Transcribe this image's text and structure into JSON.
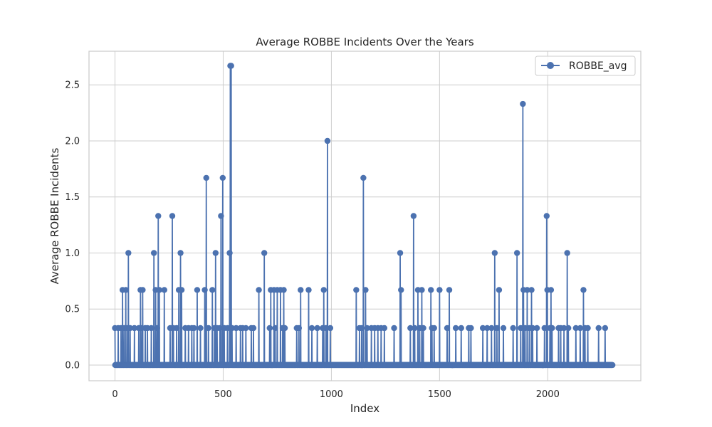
{
  "chart_data": {
    "type": "line",
    "title": "Average ROBBE Incidents Over the Years",
    "xlabel": "Index",
    "ylabel": "Average ROBBE Incidents",
    "xlim": [
      -120,
      2430
    ],
    "ylim": [
      -0.14,
      2.8
    ],
    "xticks": [
      0,
      500,
      1000,
      1500,
      2000
    ],
    "xtick_labels": [
      "0",
      "500",
      "1000",
      "1500",
      "2000"
    ],
    "yticks": [
      0.0,
      0.5,
      1.0,
      1.5,
      2.0,
      2.5
    ],
    "ytick_labels": [
      "0.0",
      "0.5",
      "1.0",
      "1.5",
      "2.0",
      "2.5"
    ],
    "grid": true,
    "legend": "top-right",
    "n_points": 2300,
    "series": [
      {
        "name": "ROBBE_avg",
        "color": "#4c72b0",
        "marker": "circle",
        "nonzero_points": [
          [
            0,
            0.33
          ],
          [
            15,
            0.33
          ],
          [
            28,
            0.33
          ],
          [
            35,
            0.67
          ],
          [
            42,
            0.33
          ],
          [
            50,
            0.67
          ],
          [
            58,
            0.33
          ],
          [
            62,
            1.0
          ],
          [
            70,
            0.33
          ],
          [
            90,
            0.33
          ],
          [
            110,
            0.33
          ],
          [
            118,
            0.67
          ],
          [
            125,
            0.33
          ],
          [
            128,
            0.67
          ],
          [
            140,
            0.33
          ],
          [
            150,
            0.33
          ],
          [
            168,
            0.33
          ],
          [
            180,
            1.0
          ],
          [
            188,
            0.67
          ],
          [
            195,
            0.33
          ],
          [
            200,
            1.33
          ],
          [
            205,
            0.67
          ],
          [
            228,
            0.67
          ],
          [
            255,
            0.33
          ],
          [
            265,
            1.33
          ],
          [
            270,
            0.33
          ],
          [
            285,
            0.33
          ],
          [
            295,
            0.67
          ],
          [
            303,
            1.0
          ],
          [
            308,
            0.67
          ],
          [
            325,
            0.33
          ],
          [
            340,
            0.33
          ],
          [
            355,
            0.33
          ],
          [
            365,
            0.33
          ],
          [
            380,
            0.67
          ],
          [
            395,
            0.33
          ],
          [
            415,
            0.67
          ],
          [
            422,
            1.67
          ],
          [
            432,
            0.33
          ],
          [
            450,
            0.67
          ],
          [
            460,
            0.33
          ],
          [
            465,
            1.0
          ],
          [
            472,
            0.33
          ],
          [
            485,
            0.33
          ],
          [
            490,
            1.33
          ],
          [
            498,
            1.67
          ],
          [
            505,
            0.33
          ],
          [
            520,
            0.33
          ],
          [
            530,
            1.0
          ],
          [
            533,
            2.67
          ],
          [
            537,
            2.67
          ],
          [
            541,
            0.33
          ],
          [
            560,
            0.33
          ],
          [
            580,
            0.33
          ],
          [
            590,
            0.33
          ],
          [
            605,
            0.33
          ],
          [
            630,
            0.33
          ],
          [
            640,
            0.33
          ],
          [
            665,
            0.67
          ],
          [
            690,
            1.0
          ],
          [
            715,
            0.33
          ],
          [
            720,
            0.67
          ],
          [
            735,
            0.67
          ],
          [
            740,
            0.33
          ],
          [
            750,
            0.67
          ],
          [
            765,
            0.67
          ],
          [
            775,
            0.33
          ],
          [
            780,
            0.67
          ],
          [
            785,
            0.33
          ],
          [
            840,
            0.33
          ],
          [
            850,
            0.33
          ],
          [
            858,
            0.67
          ],
          [
            895,
            0.67
          ],
          [
            910,
            0.33
          ],
          [
            935,
            0.33
          ],
          [
            960,
            0.33
          ],
          [
            965,
            0.67
          ],
          [
            975,
            0.33
          ],
          [
            982,
            2.0
          ],
          [
            995,
            0.33
          ],
          [
            1115,
            0.67
          ],
          [
            1130,
            0.33
          ],
          [
            1140,
            0.33
          ],
          [
            1148,
            1.67
          ],
          [
            1158,
            0.67
          ],
          [
            1165,
            0.33
          ],
          [
            1185,
            0.33
          ],
          [
            1200,
            0.33
          ],
          [
            1215,
            0.33
          ],
          [
            1230,
            0.33
          ],
          [
            1245,
            0.33
          ],
          [
            1290,
            0.33
          ],
          [
            1318,
            1.0
          ],
          [
            1322,
            0.67
          ],
          [
            1365,
            0.33
          ],
          [
            1380,
            1.33
          ],
          [
            1385,
            0.33
          ],
          [
            1400,
            0.67
          ],
          [
            1408,
            0.33
          ],
          [
            1418,
            0.67
          ],
          [
            1425,
            0.33
          ],
          [
            1460,
            0.67
          ],
          [
            1465,
            0.33
          ],
          [
            1475,
            0.33
          ],
          [
            1500,
            0.67
          ],
          [
            1535,
            0.33
          ],
          [
            1545,
            0.67
          ],
          [
            1575,
            0.33
          ],
          [
            1600,
            0.33
          ],
          [
            1635,
            0.33
          ],
          [
            1645,
            0.33
          ],
          [
            1700,
            0.33
          ],
          [
            1720,
            0.33
          ],
          [
            1740,
            0.33
          ],
          [
            1755,
            1.0
          ],
          [
            1765,
            0.33
          ],
          [
            1775,
            0.67
          ],
          [
            1795,
            0.33
          ],
          [
            1840,
            0.33
          ],
          [
            1858,
            1.0
          ],
          [
            1875,
            0.33
          ],
          [
            1885,
            2.33
          ],
          [
            1888,
            0.67
          ],
          [
            1895,
            0.33
          ],
          [
            1905,
            0.67
          ],
          [
            1915,
            0.33
          ],
          [
            1925,
            0.67
          ],
          [
            1930,
            0.33
          ],
          [
            1950,
            0.33
          ],
          [
            1985,
            0.33
          ],
          [
            1995,
            1.33
          ],
          [
            1998,
            0.67
          ],
          [
            2010,
            0.33
          ],
          [
            2015,
            0.67
          ],
          [
            2020,
            0.33
          ],
          [
            2050,
            0.33
          ],
          [
            2060,
            0.33
          ],
          [
            2075,
            0.33
          ],
          [
            2090,
            1.0
          ],
          [
            2095,
            0.33
          ],
          [
            2130,
            0.33
          ],
          [
            2150,
            0.33
          ],
          [
            2165,
            0.67
          ],
          [
            2172,
            0.33
          ],
          [
            2185,
            0.33
          ],
          [
            2235,
            0.33
          ],
          [
            2265,
            0.33
          ]
        ]
      }
    ]
  }
}
